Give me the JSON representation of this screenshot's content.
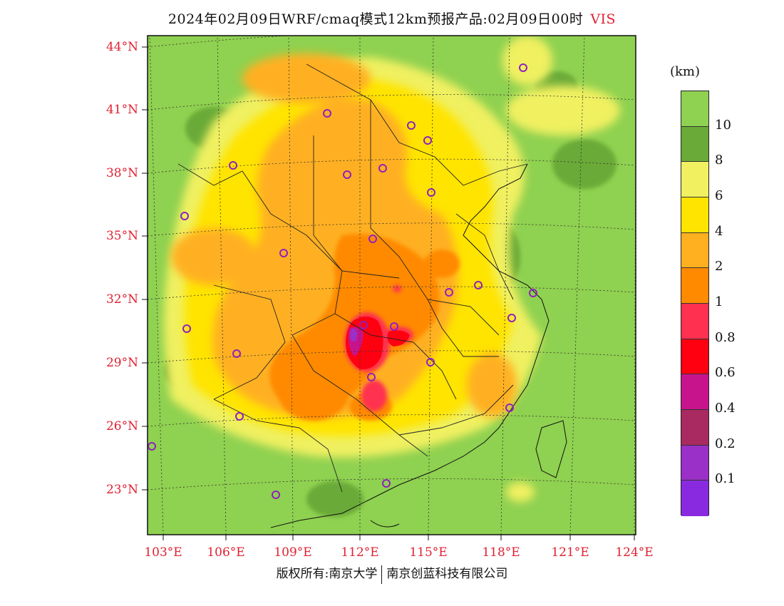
{
  "title": {
    "main": "2024年02月09日WRF/cmaq模式12km预报产品:02月09日00时",
    "variable": "VIS"
  },
  "axes": {
    "lat_labels": [
      "44°N",
      "41°N",
      "38°N",
      "35°N",
      "32°N",
      "29°N",
      "26°N",
      "23°N"
    ],
    "lon_labels": [
      "103°E",
      "106°E",
      "109°E",
      "112°E",
      "115°E",
      "118°E",
      "121°E",
      "124°E"
    ]
  },
  "legend": {
    "unit": "(km)",
    "ticks": [
      "10",
      "8",
      "6",
      "4",
      "2",
      "1",
      "0.8",
      "0.6",
      "0.4",
      "0.2",
      "0.1"
    ],
    "colors": [
      "#8fd150",
      "#6aaa38",
      "#f0f060",
      "#ffe400",
      "#ffb020",
      "#ff8a00",
      "#ff3050",
      "#ff0010",
      "#c8148c",
      "#a82a60",
      "#9a30c8",
      "#8a2ae0"
    ]
  },
  "footer": {
    "copyright": "版权所有:南京大学",
    "company": "南京创蓝科技有限公司"
  },
  "colors": {
    "background_land": "#8fd150",
    "label_red": "#e02030",
    "station_marker": "#9020c0"
  }
}
